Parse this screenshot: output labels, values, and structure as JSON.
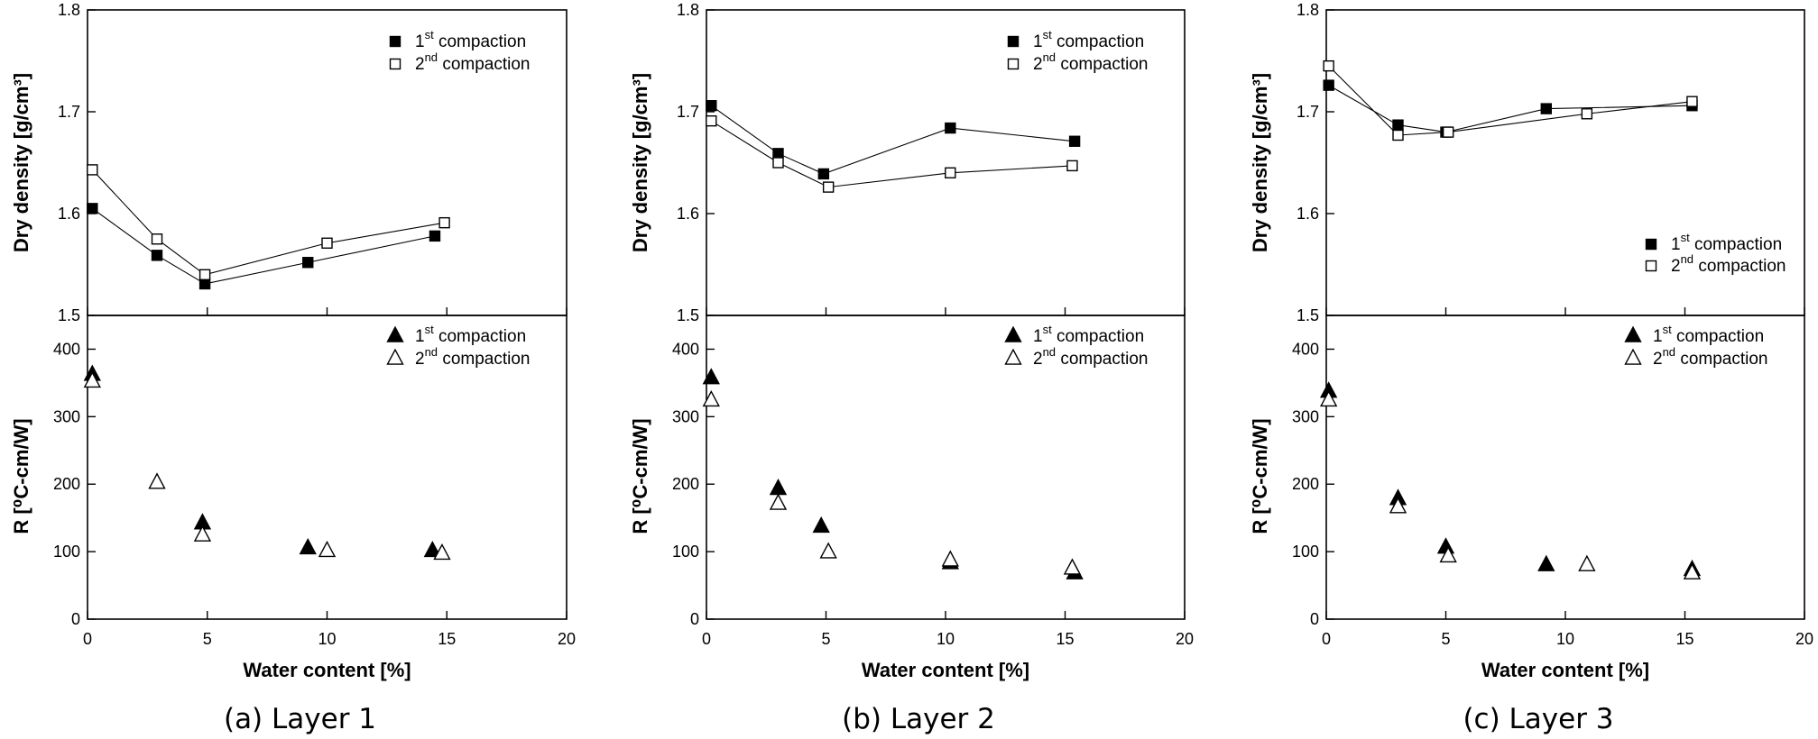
{
  "chart_data": [
    {
      "caption": "(a)  Layer  1",
      "type": "line",
      "top": {
        "type": "line",
        "ylabel": "Dry density [g/cm³]",
        "ylim": [
          1.5,
          1.8
        ],
        "yticks": [
          "1.5",
          "1.6",
          "1.7",
          "1.8"
        ],
        "legend": {
          "position": "top-right"
        },
        "series": [
          {
            "name": "1st compaction",
            "name_main": "1",
            "name_sup": "st",
            "name_rest": " compaction",
            "marker": "square-filled",
            "x": [
              0.2,
              2.9,
              4.9,
              9.2,
              14.5
            ],
            "y": [
              1.605,
              1.559,
              1.531,
              1.552,
              1.578
            ]
          },
          {
            "name": "2nd compaction",
            "name_main": "2",
            "name_sup": "nd",
            "name_rest": " compaction",
            "marker": "square-open",
            "x": [
              0.2,
              2.9,
              4.9,
              10.0,
              14.9
            ],
            "y": [
              1.643,
              1.575,
              1.54,
              1.571,
              1.591
            ]
          }
        ]
      },
      "bottom": {
        "type": "scatter",
        "ylabel": "R [⁰C-cm/W]",
        "ylim": [
          0,
          450
        ],
        "yticks": [
          "0",
          "100",
          "200",
          "300",
          "400"
        ],
        "xlabel": "Water content [%]",
        "xlim": [
          0,
          20
        ],
        "xticks": [
          "0",
          "5",
          "10",
          "15",
          "20"
        ],
        "legend": {
          "position": "top-right"
        },
        "series": [
          {
            "name": "1st compaction",
            "name_main": "1",
            "name_sup": "st",
            "name_rest": " compaction",
            "marker": "triangle-filled",
            "x": [
              0.2,
              4.8,
              9.2,
              14.4
            ],
            "y": [
              362,
              142,
              105,
              101
            ]
          },
          {
            "name": "2nd compaction",
            "name_main": "2",
            "name_sup": "nd",
            "name_rest": " compaction",
            "marker": "triangle-open",
            "x": [
              0.2,
              2.9,
              4.8,
              10.0,
              14.8
            ],
            "y": [
              352,
              202,
              124,
              101,
              97
            ]
          }
        ]
      }
    },
    {
      "caption": "(b)  Layer  2",
      "type": "line",
      "top": {
        "type": "line",
        "ylabel": "Dry density [g/cm³]",
        "ylim": [
          1.5,
          1.8
        ],
        "yticks": [
          "1.5",
          "1.6",
          "1.7",
          "1.8"
        ],
        "legend": {
          "position": "top-right"
        },
        "series": [
          {
            "name": "1st compaction",
            "name_main": "1",
            "name_sup": "st",
            "name_rest": " compaction",
            "marker": "square-filled",
            "x": [
              0.2,
              3.0,
              4.9,
              10.2,
              15.4
            ],
            "y": [
              1.706,
              1.659,
              1.639,
              1.684,
              1.671
            ]
          },
          {
            "name": "2nd compaction",
            "name_main": "2",
            "name_sup": "nd",
            "name_rest": " compaction",
            "marker": "square-open",
            "x": [
              0.2,
              3.0,
              5.1,
              10.2,
              15.3
            ],
            "y": [
              1.691,
              1.65,
              1.626,
              1.64,
              1.647
            ]
          }
        ]
      },
      "bottom": {
        "type": "scatter",
        "ylabel": "R [⁰C-cm/W]",
        "ylim": [
          0,
          450
        ],
        "yticks": [
          "0",
          "100",
          "200",
          "300",
          "400"
        ],
        "xlabel": "Water content [%]",
        "xlim": [
          0,
          20
        ],
        "xticks": [
          "0",
          "5",
          "10",
          "15",
          "20"
        ],
        "legend": {
          "position": "top-right"
        },
        "series": [
          {
            "name": "1st compaction",
            "name_main": "1",
            "name_sup": "st",
            "name_rest": " compaction",
            "marker": "triangle-filled",
            "x": [
              0.2,
              3.0,
              4.8,
              10.2,
              15.4
            ],
            "y": [
              357,
              193,
              137,
              83,
              68
            ]
          },
          {
            "name": "2nd compaction",
            "name_main": "2",
            "name_sup": "nd",
            "name_rest": " compaction",
            "marker": "triangle-open",
            "x": [
              0.2,
              3.0,
              5.1,
              10.2,
              15.3
            ],
            "y": [
              324,
              171,
              99,
              87,
              75
            ]
          }
        ]
      }
    },
    {
      "caption": "(c)  Layer  3",
      "type": "line",
      "top": {
        "type": "line",
        "ylabel": "Dry density [g/cm³]",
        "ylim": [
          1.5,
          1.8
        ],
        "yticks": [
          "1.5",
          "1.6",
          "1.7",
          "1.8"
        ],
        "legend": {
          "position": "bottom-right"
        },
        "series": [
          {
            "name": "1st compaction",
            "name_main": "1",
            "name_sup": "st",
            "name_rest": " compaction",
            "marker": "square-filled",
            "x": [
              0.1,
              3.0,
              5.0,
              9.2,
              15.3
            ],
            "y": [
              1.726,
              1.687,
              1.68,
              1.703,
              1.706
            ]
          },
          {
            "name": "2nd compaction",
            "name_main": "2",
            "name_sup": "nd",
            "name_rest": " compaction",
            "marker": "square-open",
            "x": [
              0.1,
              3.0,
              5.1,
              10.9,
              15.3
            ],
            "y": [
              1.745,
              1.677,
              1.68,
              1.698,
              1.71
            ]
          }
        ]
      },
      "bottom": {
        "type": "scatter",
        "ylabel": "R [⁰C-cm/W]",
        "ylim": [
          0,
          450
        ],
        "yticks": [
          "0",
          "100",
          "200",
          "300",
          "400"
        ],
        "xlabel": "Water content [%]",
        "xlim": [
          0,
          20
        ],
        "xticks": [
          "0",
          "5",
          "10",
          "15",
          "20"
        ],
        "legend": {
          "position": "top-right"
        },
        "series": [
          {
            "name": "1st compaction",
            "name_main": "1",
            "name_sup": "st",
            "name_rest": " compaction",
            "marker": "triangle-filled",
            "x": [
              0.1,
              3.0,
              5.0,
              9.2,
              15.3
            ],
            "y": [
              337,
              178,
              106,
              80,
              73
            ]
          },
          {
            "name": "2nd compaction",
            "name_main": "2",
            "name_sup": "nd",
            "name_rest": " compaction",
            "marker": "triangle-open",
            "x": [
              0.1,
              3.0,
              5.1,
              10.9,
              15.3
            ],
            "y": [
              324,
              166,
              93,
              80,
              68
            ]
          }
        ]
      }
    }
  ]
}
